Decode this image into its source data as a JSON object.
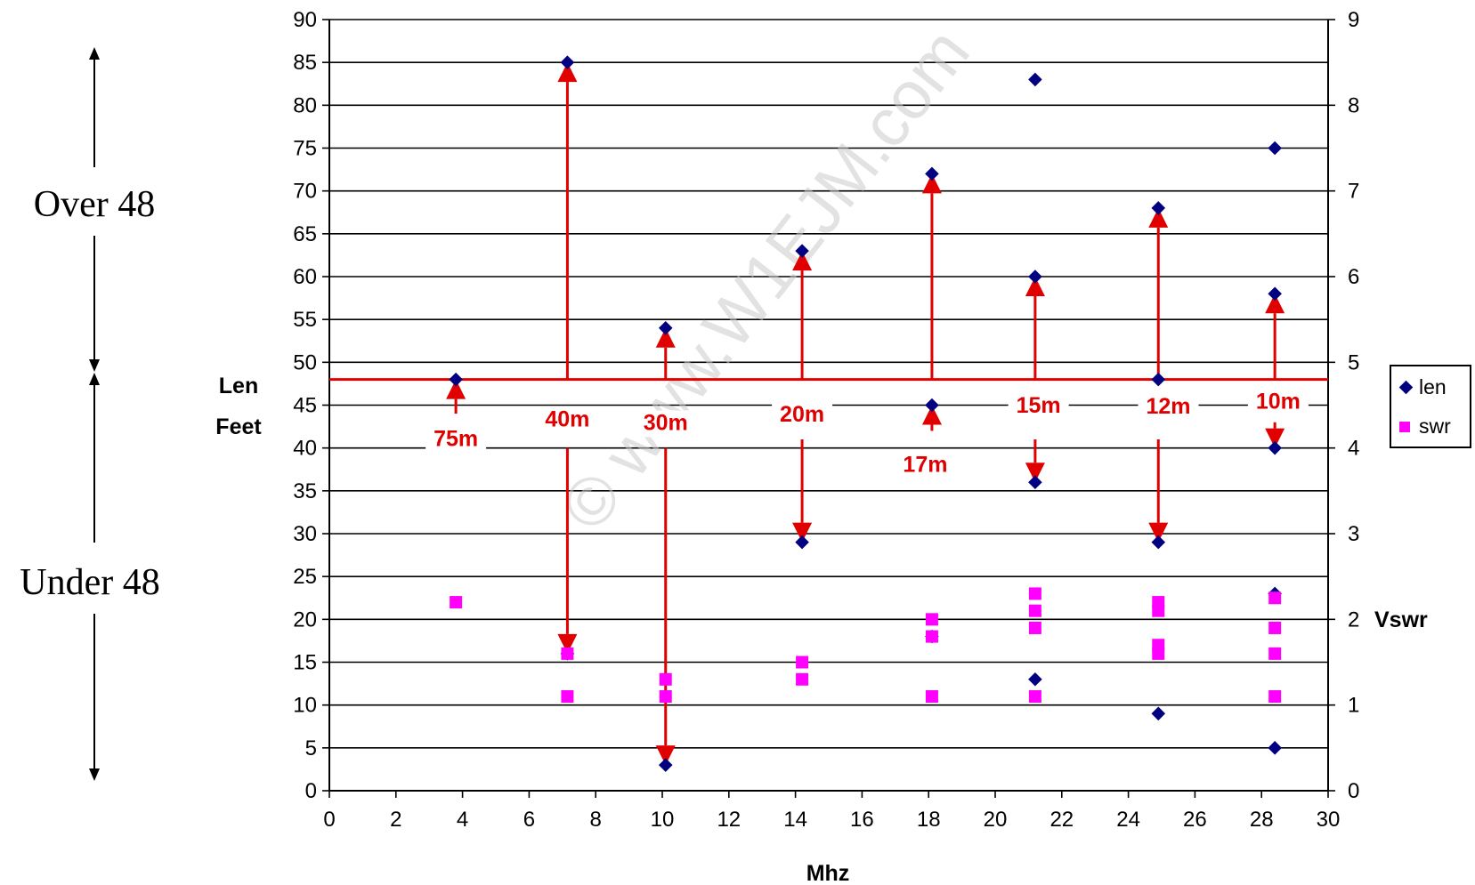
{
  "side_labels": {
    "over": "Over 48",
    "under": "Under 48"
  },
  "watermark": "© www.W1EJM.com",
  "chart_data": {
    "type": "scatter",
    "xlabel": "Mhz",
    "ylabel_line1": "Len",
    "ylabel_line2": "Feet",
    "y2label": "Vswr",
    "xlim": [
      0,
      30
    ],
    "ylim": [
      0,
      90
    ],
    "y2lim": [
      0,
      9
    ],
    "x_ticks": [
      "0",
      "2",
      "4",
      "6",
      "8",
      "10",
      "12",
      "14",
      "16",
      "18",
      "20",
      "22",
      "24",
      "26",
      "28",
      "30"
    ],
    "y_ticks": [
      "0",
      "5",
      "10",
      "15",
      "20",
      "25",
      "30",
      "35",
      "40",
      "45",
      "50",
      "55",
      "60",
      "65",
      "70",
      "75",
      "80",
      "85",
      "90"
    ],
    "y2_ticks": [
      "0",
      "1",
      "2",
      "3",
      "4",
      "5",
      "6",
      "7",
      "8",
      "9"
    ],
    "grid": true,
    "legend_position": "right",
    "reference_line_y": 48,
    "series": [
      {
        "name": "len",
        "axis": "left",
        "marker": "diamond",
        "color": "#000080",
        "points": [
          [
            3.8,
            48
          ],
          [
            7.15,
            85
          ],
          [
            7.15,
            16
          ],
          [
            10.1,
            54
          ],
          [
            10.1,
            3
          ],
          [
            14.2,
            63
          ],
          [
            14.2,
            29
          ],
          [
            18.1,
            72
          ],
          [
            18.1,
            45
          ],
          [
            18.1,
            18
          ],
          [
            21.2,
            83
          ],
          [
            21.2,
            60
          ],
          [
            21.2,
            36
          ],
          [
            21.2,
            13
          ],
          [
            24.9,
            68
          ],
          [
            24.9,
            48
          ],
          [
            24.9,
            29
          ],
          [
            24.9,
            9
          ],
          [
            28.4,
            75
          ],
          [
            28.4,
            58
          ],
          [
            28.4,
            40
          ],
          [
            28.4,
            23
          ],
          [
            28.4,
            5
          ]
        ]
      },
      {
        "name": "swr",
        "axis": "right",
        "marker": "square",
        "color": "#ff00ff",
        "points": [
          [
            3.8,
            2.2
          ],
          [
            7.15,
            1.6
          ],
          [
            7.15,
            1.1
          ],
          [
            10.1,
            1.3
          ],
          [
            10.1,
            1.1
          ],
          [
            14.2,
            1.5
          ],
          [
            14.2,
            1.3
          ],
          [
            18.1,
            2.0
          ],
          [
            18.1,
            1.8
          ],
          [
            18.1,
            1.1
          ],
          [
            21.2,
            2.3
          ],
          [
            21.2,
            2.1
          ],
          [
            21.2,
            1.9
          ],
          [
            21.2,
            1.1
          ],
          [
            24.9,
            2.2
          ],
          [
            24.9,
            2.1
          ],
          [
            24.9,
            1.7
          ],
          [
            24.9,
            1.6
          ],
          [
            28.4,
            2.25
          ],
          [
            28.4,
            1.9
          ],
          [
            28.4,
            1.6
          ],
          [
            28.4,
            1.1
          ]
        ]
      }
    ],
    "bands": [
      {
        "label": "75m",
        "x": 3.8,
        "arrows": [
          {
            "from": 44,
            "to": 48
          }
        ]
      },
      {
        "label": "40m",
        "x": 7.15,
        "arrows": [
          {
            "from": 48,
            "to": 85
          },
          {
            "from": 40,
            "to": 16
          }
        ]
      },
      {
        "label": "30m",
        "x": 10.1,
        "arrows": [
          {
            "from": 48,
            "to": 54
          },
          {
            "from": 40,
            "to": 3
          }
        ]
      },
      {
        "label": "20m",
        "x": 14.2,
        "arrows": [
          {
            "from": 48,
            "to": 63
          },
          {
            "from": 41,
            "to": 29
          }
        ]
      },
      {
        "label": "17m",
        "x": 18.1,
        "arrows": [
          {
            "from": 42,
            "to": 45
          },
          {
            "from": 48,
            "to": 72
          }
        ]
      },
      {
        "label": "15m",
        "x": 21.2,
        "arrows": [
          {
            "from": 48,
            "to": 60
          },
          {
            "from": 41,
            "to": 36
          }
        ]
      },
      {
        "label": "12m",
        "x": 24.9,
        "arrows": [
          {
            "from": 48,
            "to": 68
          },
          {
            "from": 41,
            "to": 29
          }
        ]
      },
      {
        "label": "10m",
        "x": 28.4,
        "arrows": [
          {
            "from": 48,
            "to": 58
          },
          {
            "from": 43,
            "to": 40
          }
        ]
      }
    ],
    "legend": [
      {
        "label": "len",
        "marker": "diamond",
        "color": "#000080"
      },
      {
        "label": "swr",
        "marker": "square",
        "color": "#ff00ff"
      }
    ]
  }
}
